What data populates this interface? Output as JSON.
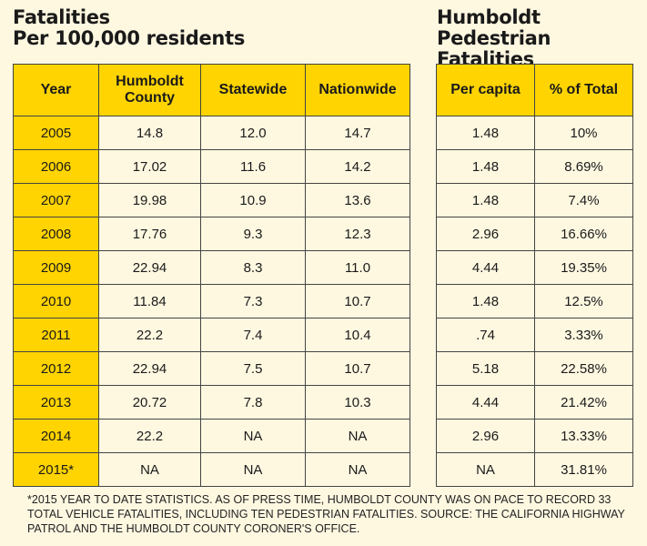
{
  "chart_data": [
    {
      "type": "table",
      "title": [
        "Fatalities",
        "Per 100,000 residents"
      ],
      "columns": [
        "Year",
        "Humboldt County",
        "Statewide",
        "Nationwide"
      ],
      "rows": [
        [
          "2005",
          "14.8",
          "12.0",
          "14.7"
        ],
        [
          "2006",
          "17.02",
          "11.6",
          "14.2"
        ],
        [
          "2007",
          "19.98",
          "10.9",
          "13.6"
        ],
        [
          "2008",
          "17.76",
          "9.3",
          "12.3"
        ],
        [
          "2009",
          "22.94",
          "8.3",
          "11.0"
        ],
        [
          "2010",
          "11.84",
          "7.3",
          "10.7"
        ],
        [
          "2011",
          "22.2",
          "7.4",
          "10.4"
        ],
        [
          "2012",
          "22.94",
          "7.5",
          "10.7"
        ],
        [
          "2013",
          "20.72",
          "7.8",
          "10.3"
        ],
        [
          "2014",
          "22.2",
          "NA",
          "NA"
        ],
        [
          "2015*",
          "NA",
          "NA",
          "NA"
        ]
      ]
    },
    {
      "type": "table",
      "title": [
        "Humboldt",
        "Pedestrian Fatalities"
      ],
      "columns": [
        "Per capita",
        "% of Total"
      ],
      "rows": [
        [
          "1.48",
          "10%"
        ],
        [
          "1.48",
          "8.69%"
        ],
        [
          "1.48",
          "7.4%"
        ],
        [
          "2.96",
          "16.66%"
        ],
        [
          "4.44",
          "19.35%"
        ],
        [
          "1.48",
          "12.5%"
        ],
        [
          ".74",
          "3.33%"
        ],
        [
          "5.18",
          "22.58%"
        ],
        [
          "4.44",
          "21.42%"
        ],
        [
          "2.96",
          "13.33%"
        ],
        [
          "NA",
          "31.81%"
        ]
      ]
    }
  ],
  "footnote": "*2015 YEAR TO DATE STATISTICS. AS OF PRESS TIME, HUMBOLDT COUNTY WAS ON PACE TO RECORD 33 TOTAL VEHICLE FATALITIES, INCLUDING TEN PEDESTRIAN FATALITIES.  SOURCE: THE CALIFORNIA HIGHWAY PATROL AND THE HUMBOLDT COUNTY CORONER'S OFFICE.",
  "colors": {
    "header_bg": "#ffd400",
    "page_bg": "#fff8e1",
    "border": "#444444"
  }
}
